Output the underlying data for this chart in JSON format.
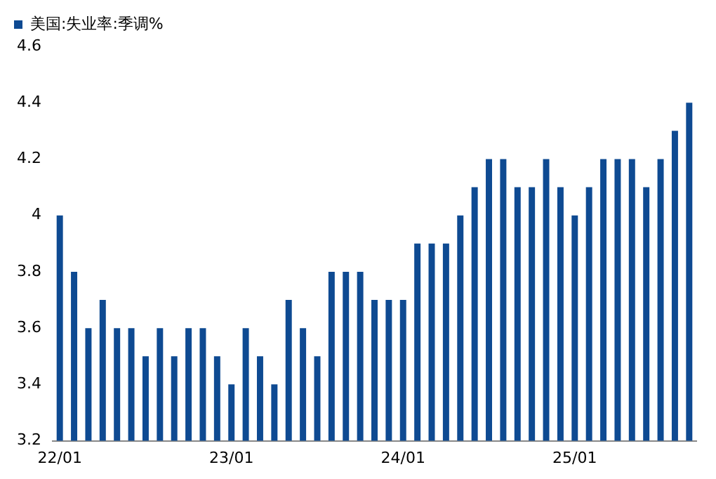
{
  "chart_data": {
    "type": "bar",
    "categories": [
      "22/01",
      null,
      null,
      null,
      null,
      null,
      null,
      null,
      null,
      null,
      null,
      null,
      "23/01",
      null,
      null,
      null,
      null,
      null,
      null,
      null,
      null,
      null,
      null,
      null,
      "24/01",
      null,
      null,
      null,
      null,
      null,
      null,
      null,
      null,
      null,
      null,
      null,
      "25/01",
      null,
      null,
      null,
      null,
      null,
      null,
      null,
      null
    ],
    "series": [
      {
        "name": "美国:失业率:季调%",
        "color": "#0e4a92",
        "values": [
          4.0,
          3.8,
          3.6,
          3.7,
          3.6,
          3.6,
          3.5,
          3.6,
          3.5,
          3.6,
          3.6,
          3.5,
          3.4,
          3.6,
          3.5,
          3.4,
          3.7,
          3.6,
          3.5,
          3.8,
          3.8,
          3.8,
          3.7,
          3.7,
          3.7,
          3.9,
          3.9,
          3.9,
          4.0,
          4.1,
          4.2,
          4.2,
          4.1,
          4.1,
          4.2,
          4.1,
          4.0,
          4.1,
          4.2,
          4.2,
          4.2,
          4.1,
          4.2,
          4.3,
          4.4
        ]
      }
    ],
    "ylim": [
      3.2,
      4.6
    ],
    "yticks": [
      3.2,
      3.4,
      3.6,
      3.8,
      4,
      4.2,
      4.4,
      4.6
    ],
    "grid": false,
    "legend": "top left"
  }
}
